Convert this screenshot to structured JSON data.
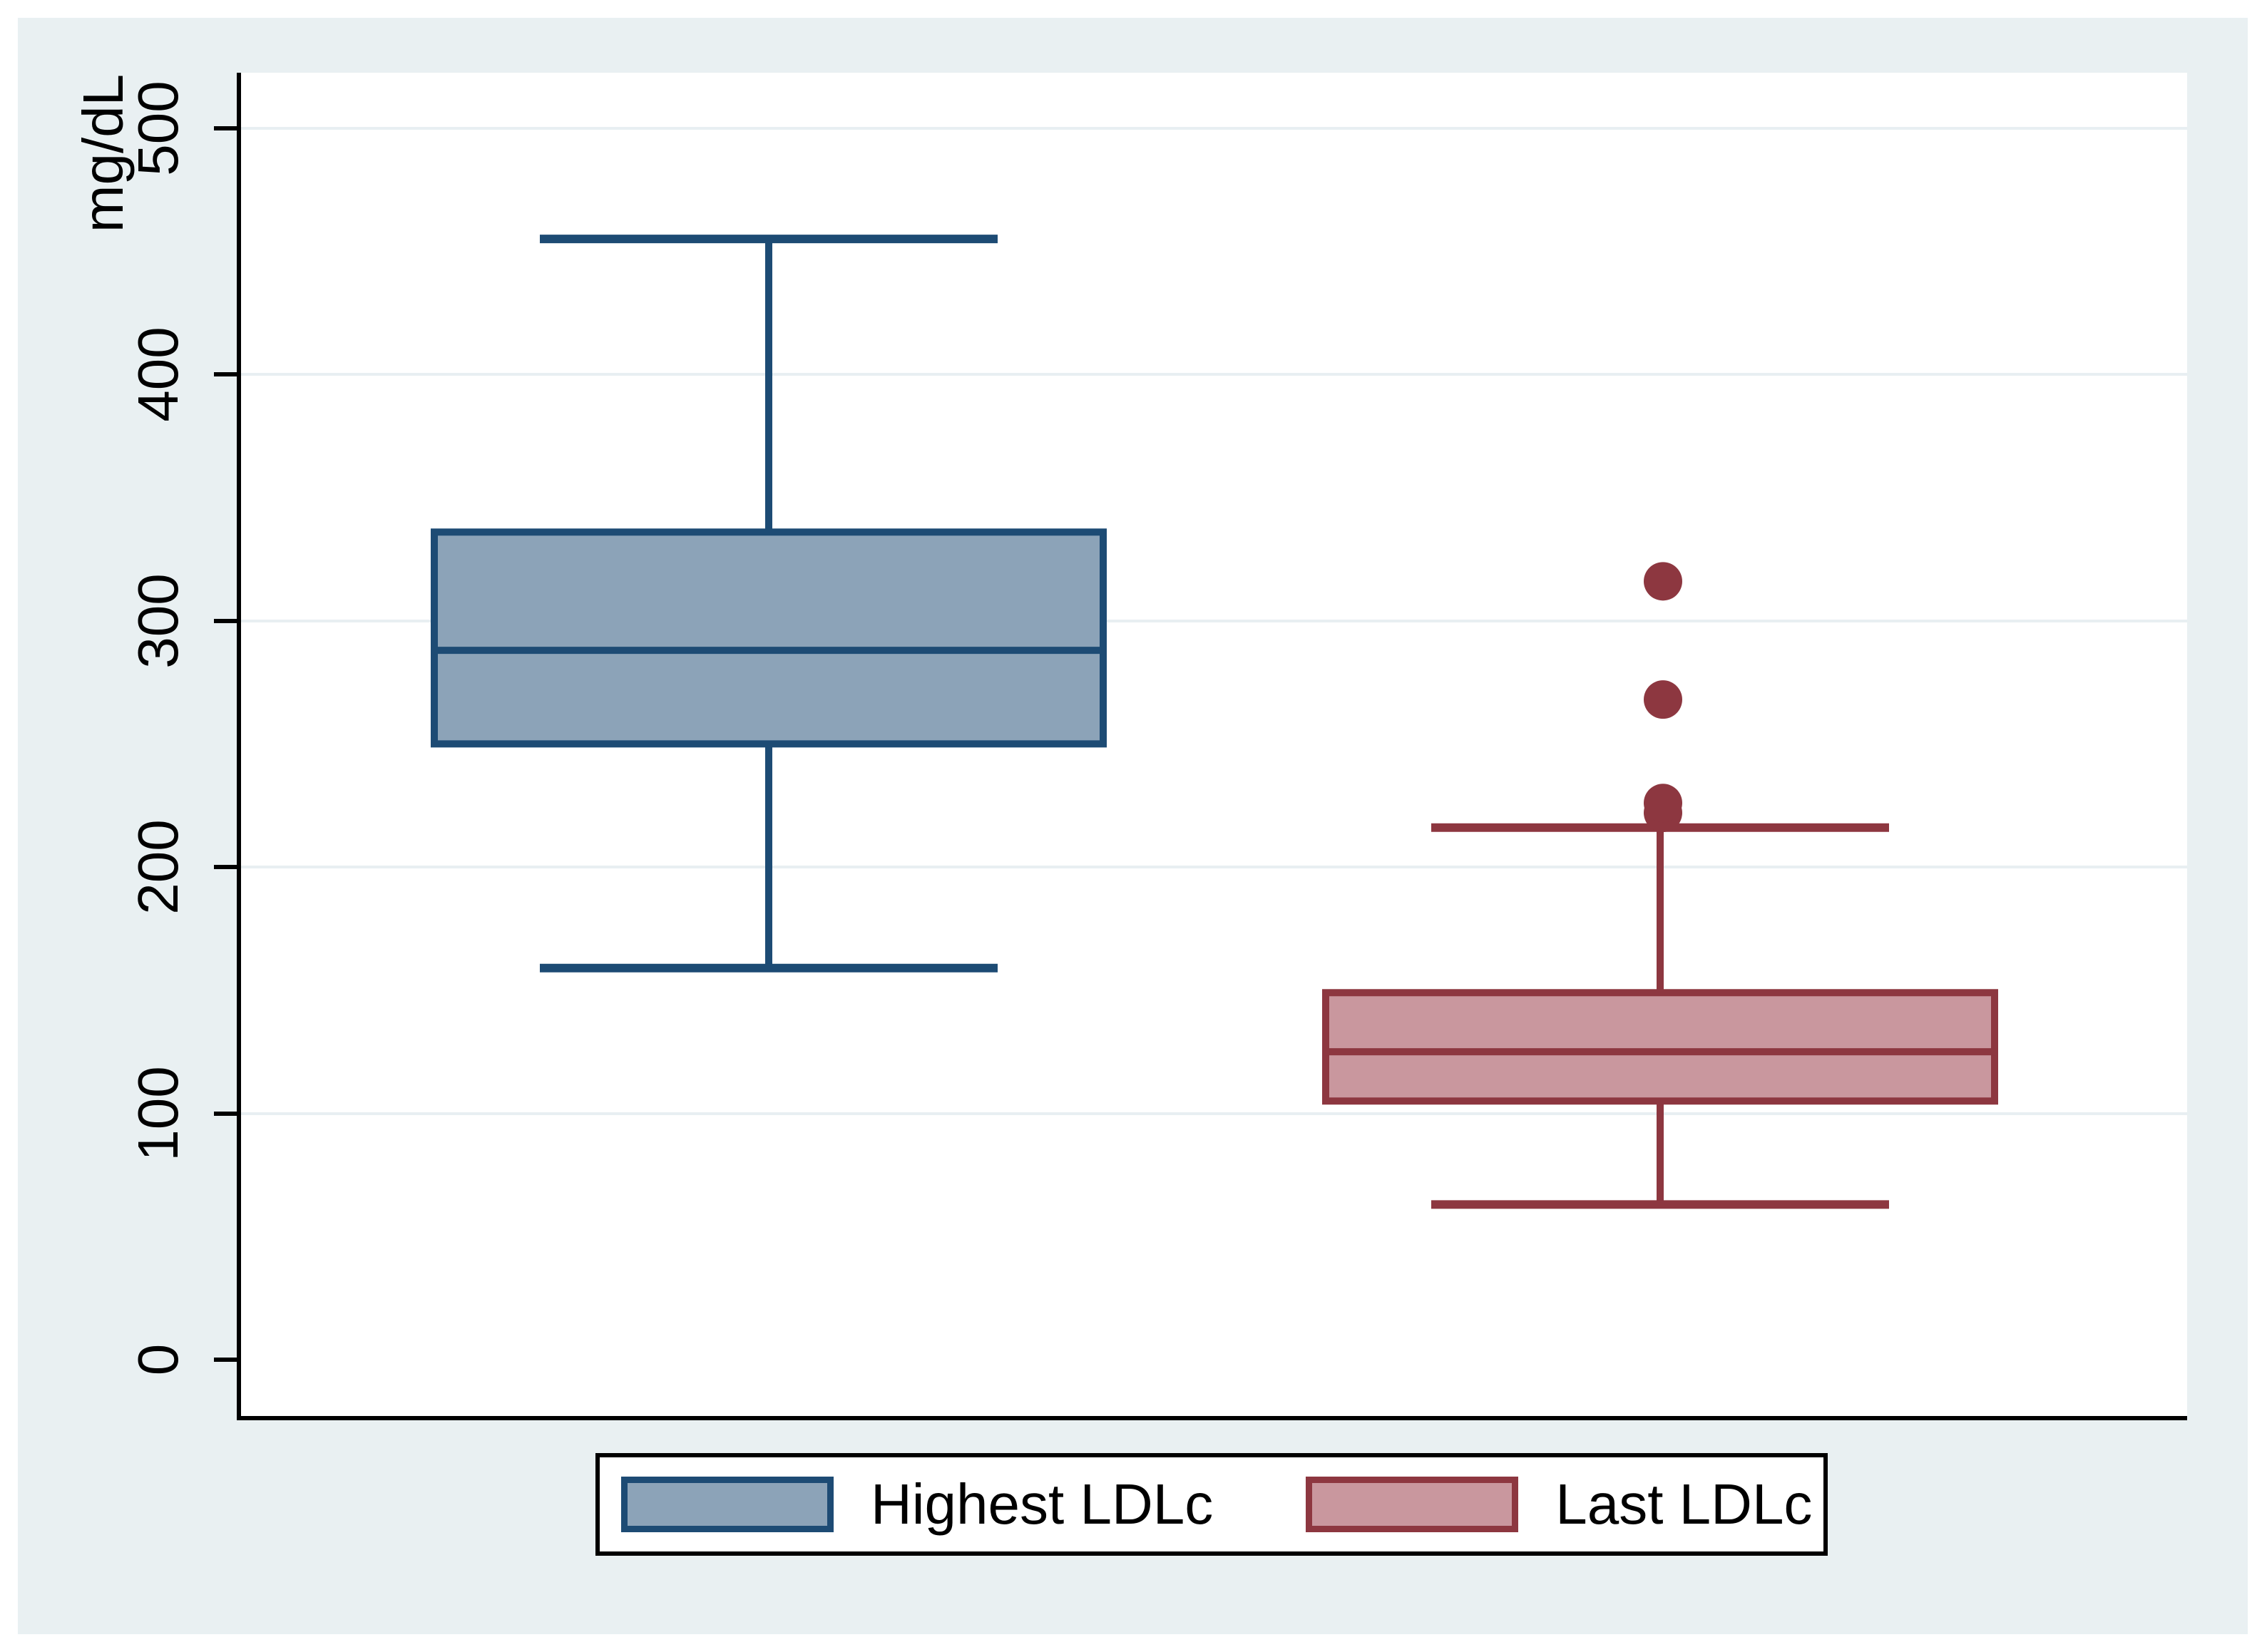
{
  "chart_data": {
    "type": "box",
    "title": "",
    "ylabel": "mg/dL",
    "yticks": [
      0,
      100,
      200,
      300,
      400,
      500
    ],
    "ylim": [
      -23,
      523
    ],
    "grid": "horizontal",
    "legend_position": "bottom",
    "colors": {
      "figure_background": "#e9f0f2",
      "plot_background": "#ffffff",
      "gridline": "#e8eff2",
      "axis": "#000000"
    },
    "series": [
      {
        "name": "Highest LDLc",
        "fill": "#8ca3b8",
        "stroke": "#1d4b74",
        "whisker_low": 159,
        "q1": 250,
        "median": 288,
        "q3": 336,
        "whisker_high": 455,
        "outliers": []
      },
      {
        "name": "Last LDLc",
        "fill": "#c9979e",
        "stroke": "#8d3740",
        "whisker_low": 63,
        "q1": 105,
        "median": 125,
        "q3": 149,
        "whisker_high": 216,
        "outliers": [
          222,
          226,
          268,
          316
        ]
      }
    ]
  }
}
